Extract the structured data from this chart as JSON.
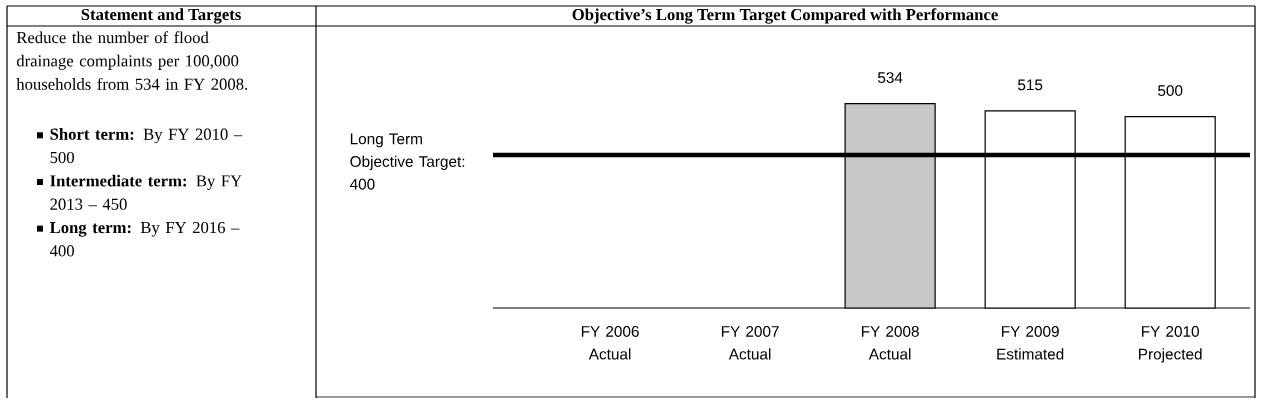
{
  "chart_data": {
    "type": "bar",
    "title": "Objective’s Long Term Target Compared with Performance",
    "annotations": [
      "Statement and Targets",
      "Reduce the number of flood drainage complaints per 100,000 households from 534 in FY 2008.",
      "**Short term:** By FY 2010 – 500",
      "**Intermediate term:** By FY 2013 – 450",
      "**Long term:** By FY 2016 – 400"
    ],
    "categories": [
      "FY 2006 Actual",
      "FY 2007 Actual",
      "FY 2008 Actual",
      "FY 2009 Estimated",
      "FY 2010 Projected"
    ],
    "values": [
      null,
      null,
      534,
      515,
      500
    ],
    "colors": [
      "#ffffff",
      "#ffffff",
      "#c8c8c8",
      "#ffffff",
      "#ffffff"
    ],
    "data_labels": true,
    "ref_lines": [
      {
        "axis": "y",
        "value": 400,
        "label": "Long Term Objective Target: 400",
        "color": "#000000"
      }
    ]
  }
}
